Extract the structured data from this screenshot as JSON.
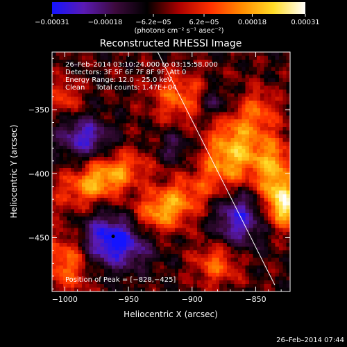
{
  "chart_data": {
    "type": "heatmap",
    "title": "Reconstructed RHESSI Image",
    "xlabel": "Heliocentric X (arcsec)",
    "ylabel": "Heliocentric Y (arcsec)",
    "xlim": [
      -1010,
      -823
    ],
    "ylim": [
      -492,
      -305
    ],
    "x_ticks": [
      -1000,
      -950,
      -900,
      -850
    ],
    "y_ticks": [
      -350,
      -400,
      -450
    ],
    "x_tick_labels": [
      "−1000",
      "−950",
      "−900",
      "−850"
    ],
    "y_tick_labels": [
      "−350",
      "−400",
      "−450"
    ],
    "colorbar": {
      "range": [
        -0.00031,
        0.00031
      ],
      "ticks": [
        -0.00031,
        -0.00018,
        -6.2e-05,
        6.2e-05,
        0.00018,
        0.00031
      ],
      "tick_labels": [
        "−0.00031",
        "−0.00018",
        "−6.2e−05",
        "6.2e−05",
        "0.00018",
        "0.00031"
      ],
      "unit_label": "(photons cm⁻² s⁻¹ asec⁻²)"
    },
    "info_lines": [
      "26–Feb–2014 03:10:24.000 to 03:15:58.000",
      "Detectors: 3F 5F 6F 7F 8F 9F, Att 0",
      "Energy Range: 12.0 – 25.0 keV",
      "Clean     Total counts: 1.47E+04"
    ],
    "peak_label": "Position of Peak = [−828,−425]",
    "peak": [
      -828,
      -425
    ],
    "min_marker": [
      -962,
      -449
    ],
    "limb_line": [
      [
        -927,
        -305
      ],
      [
        -835,
        -487
      ]
    ],
    "emission_ridges": [
      {
        "center": [
          -970,
          -404
        ],
        "sx": 24,
        "sy": 11,
        "angle_deg": 22,
        "amp": 0.82
      },
      {
        "center": [
          -922,
          -428
        ],
        "sx": 22,
        "sy": 12,
        "angle_deg": 30,
        "amp": 0.8
      },
      {
        "center": [
          -868,
          -385
        ],
        "sx": 16,
        "sy": 26,
        "angle_deg": -15,
        "amp": 0.84
      },
      {
        "center": [
          -836,
          -398
        ],
        "sx": 11,
        "sy": 18,
        "angle_deg": 0,
        "amp": 0.72
      },
      {
        "center": [
          -828,
          -425
        ],
        "sx": 9,
        "sy": 12,
        "angle_deg": 0,
        "amp": 0.92
      },
      {
        "center": [
          -910,
          -340
        ],
        "sx": 16,
        "sy": 13,
        "angle_deg": 0,
        "amp": 0.55
      },
      {
        "center": [
          -998,
          -468
        ],
        "sx": 13,
        "sy": 17,
        "angle_deg": 0,
        "amp": 0.62
      },
      {
        "center": [
          -880,
          -470
        ],
        "sx": 13,
        "sy": 12,
        "angle_deg": 0,
        "amp": 0.55
      },
      {
        "center": [
          -1000,
          -340
        ],
        "sx": 8,
        "sy": 10,
        "angle_deg": 0,
        "amp": 0.45
      },
      {
        "center": [
          -845,
          -350
        ],
        "sx": 10,
        "sy": 10,
        "angle_deg": 0,
        "amp": 0.3
      }
    ],
    "emission_holes": [
      {
        "center": [
          -960,
          -452
        ],
        "sx": 19,
        "sy": 14,
        "amp": 1.0
      },
      {
        "center": [
          -985,
          -372
        ],
        "sx": 14,
        "sy": 11,
        "amp": 0.65
      },
      {
        "center": [
          -865,
          -432
        ],
        "sx": 14,
        "sy": 18,
        "amp": 0.75
      },
      {
        "center": [
          -882,
          -345
        ],
        "sx": 10,
        "sy": 9,
        "amp": 0.45
      },
      {
        "center": [
          -915,
          -380
        ],
        "sx": 10,
        "sy": 9,
        "amp": 0.35
      }
    ]
  },
  "timestamp": "26–Feb–2014 07:44",
  "colors": {
    "background": "#000000",
    "colormap": [
      "#1414ff",
      "#5a1ab4",
      "#3c0a3c",
      "#000000",
      "#aa0000",
      "#ff3000",
      "#ff8c00",
      "#ffdc28",
      "#ffffff"
    ]
  }
}
